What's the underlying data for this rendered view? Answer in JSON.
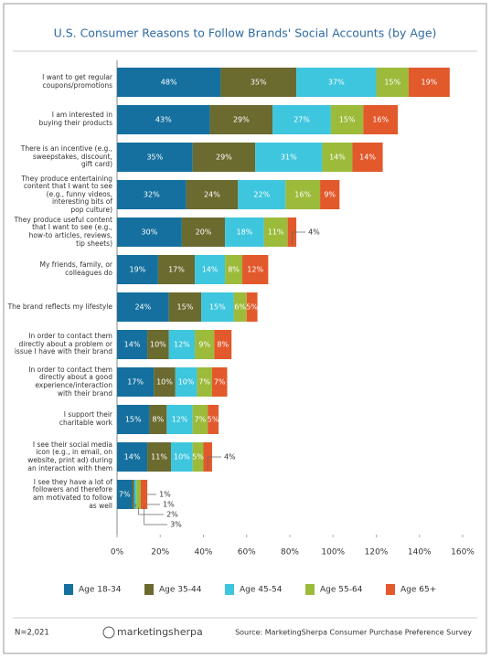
{
  "chart_data": {
    "type": "stacked-barh",
    "title": "U.S. Consumer Reasons to Follow Brands' Social Accounts (by Age)",
    "categories": [
      "I want to get regular\ncoupons/promotions",
      "I am interested in\nbuying their products",
      "There is an incentive (e.g.,\nsweepstakes, discount,\ngift card)",
      "They produce entertaining\ncontent that I want to see\n(e.g., funny videos,\ninteresting bits of\npop culture)",
      "They produce useful content\nthat I want to see (e.g.,\nhow-to articles, reviews,\ntip sheets)",
      "My friends, family, or\ncolleagues do",
      "The brand reflects my lifestyle",
      "In order to contact them\ndirectly about a problem or\nissue I have with their brand",
      "In order to contact them\ndirectly about a good\nexperience/interaction\nwith their brand",
      "I support their\ncharitable work",
      "I see their social media\nicon (e.g., in email, on\nwebsite, print ad) during\nan interaction with them",
      "I see they have a lot of\nfollowers and therefore\nam motivated to follow\nas well"
    ],
    "series": [
      {
        "name": "Age 18-34",
        "color": "#15709f",
        "values": [
          48,
          43,
          35,
          32,
          30,
          19,
          24,
          14,
          17,
          15,
          14,
          7
        ],
        "value_labels": [
          "48%",
          "43%",
          "35%",
          "32%",
          "30%",
          "19%",
          "24%",
          "14%",
          "17%",
          "15%",
          "14%",
          "7%"
        ]
      },
      {
        "name": "Age 35-44",
        "color": "#6b6a2f",
        "values": [
          35,
          29,
          29,
          24,
          20,
          17,
          15,
          10,
          10,
          8,
          11,
          1
        ],
        "value_labels": [
          "35%",
          "29%",
          "29%",
          "24%",
          "20%",
          "17%",
          "15%",
          "10%",
          "10%",
          "8%",
          "11%",
          "1%"
        ]
      },
      {
        "name": "Age 45-54",
        "color": "#3ec6de",
        "values": [
          37,
          27,
          31,
          22,
          18,
          14,
          15,
          12,
          10,
          12,
          10,
          1
        ],
        "value_labels": [
          "37%",
          "27%",
          "31%",
          "22%",
          "18%",
          "14%",
          "15%",
          "12%",
          "10%",
          "12%",
          "10%",
          "1%"
        ]
      },
      {
        "name": "Age 55-64",
        "color": "#9cbb3b",
        "values": [
          15,
          15,
          14,
          16,
          11,
          8,
          6,
          9,
          7,
          7,
          5,
          2
        ],
        "value_labels": [
          "15%",
          "15%",
          "14%",
          "16%",
          "11%",
          "8%",
          "6%",
          "9%",
          "7%",
          "7%",
          "5%",
          "2%"
        ]
      },
      {
        "name": "Age 65+",
        "color": "#e2592b",
        "values": [
          19,
          16,
          14,
          9,
          4,
          12,
          5,
          8,
          7,
          5,
          4,
          3
        ],
        "value_labels": [
          "19%",
          "16%",
          "14%",
          "9%",
          "4%",
          "12%",
          "5%",
          "8%",
          "7%",
          "5%",
          "4%",
          "3%"
        ]
      }
    ],
    "xlim": [
      0,
      160
    ],
    "xticks": [
      {
        "value": 0,
        "label": "0%"
      },
      {
        "value": 20,
        "label": "20%"
      },
      {
        "value": 40,
        "label": "40%"
      },
      {
        "value": 60,
        "label": "60%"
      },
      {
        "value": 80,
        "label": "80%"
      },
      {
        "value": 100,
        "label": "100%"
      },
      {
        "value": 120,
        "label": "120%"
      },
      {
        "value": 140,
        "label": "140%"
      },
      {
        "value": 160,
        "label": "160%"
      }
    ],
    "note": "N=2,021",
    "logo": "marketingsherpa",
    "source": "Source: MarketingSherpa Consumer Purchase Preference Survey"
  }
}
